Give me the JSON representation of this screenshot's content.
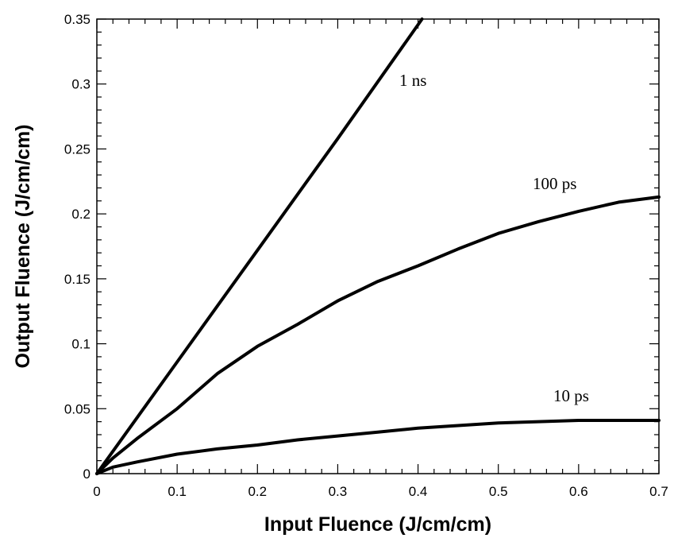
{
  "chart_data": {
    "type": "line",
    "title": "",
    "xlabel": "Input Fluence (J/cm/cm)",
    "ylabel": "Output Fluence  (J/cm/cm)",
    "xlim": [
      0,
      0.7
    ],
    "ylim": [
      0,
      0.35
    ],
    "x_ticks": [
      0,
      0.1,
      0.2,
      0.3,
      0.4,
      0.5,
      0.6,
      0.7
    ],
    "x_tick_labels": [
      "0",
      "0.1",
      "0.2",
      "0.3",
      "0.4",
      "0.5",
      "0.6",
      "0.7"
    ],
    "y_ticks": [
      0,
      0.05,
      0.1,
      0.15,
      0.2,
      0.25,
      0.3,
      0.35
    ],
    "y_tick_labels": [
      "0",
      "0.05",
      "0.1",
      "0.15",
      "0.2",
      "0.25",
      "0.3",
      "0.35"
    ],
    "grid": false,
    "series": [
      {
        "name": "1 ns",
        "x": [
          0,
          0.1,
          0.2,
          0.3,
          0.405
        ],
        "y": [
          0,
          0.086,
          0.172,
          0.258,
          0.35
        ]
      },
      {
        "name": "100 ps",
        "x": [
          0,
          0.02,
          0.05,
          0.1,
          0.15,
          0.2,
          0.25,
          0.3,
          0.35,
          0.4,
          0.45,
          0.5,
          0.55,
          0.6,
          0.65,
          0.7
        ],
        "y": [
          0,
          0.012,
          0.027,
          0.05,
          0.077,
          0.098,
          0.115,
          0.133,
          0.148,
          0.16,
          0.173,
          0.185,
          0.194,
          0.202,
          0.209,
          0.213
        ]
      },
      {
        "name": "10 ps",
        "x": [
          0,
          0.02,
          0.05,
          0.1,
          0.15,
          0.2,
          0.25,
          0.3,
          0.35,
          0.4,
          0.45,
          0.5,
          0.55,
          0.6,
          0.65,
          0.7
        ],
        "y": [
          0,
          0.005,
          0.009,
          0.015,
          0.019,
          0.022,
          0.026,
          0.029,
          0.032,
          0.035,
          0.037,
          0.039,
          0.04,
          0.041,
          0.041,
          0.041
        ]
      }
    ]
  }
}
